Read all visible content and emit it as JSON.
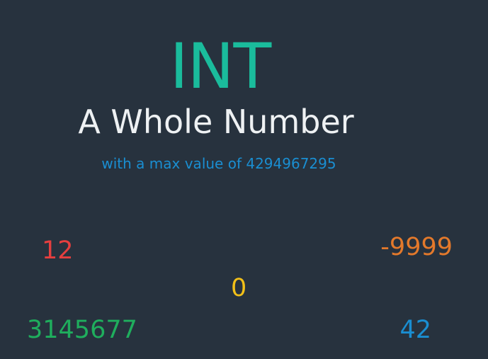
{
  "title": "INT",
  "subtitle": "A Whole Number",
  "note": "with a max value of 4294967295",
  "examples": [
    {
      "value": "12",
      "color": "#e53f3f"
    },
    {
      "value": "-9999",
      "color": "#e3792b"
    },
    {
      "value": "0",
      "color": "#f2c018"
    },
    {
      "value": "3145677",
      "color": "#1fae5d"
    },
    {
      "value": "42",
      "color": "#1a8ed1"
    }
  ],
  "colors": {
    "background": "#27323e",
    "title": "#1abc9c",
    "subtitle": "#eef1f3",
    "note": "#1a8ed1"
  }
}
